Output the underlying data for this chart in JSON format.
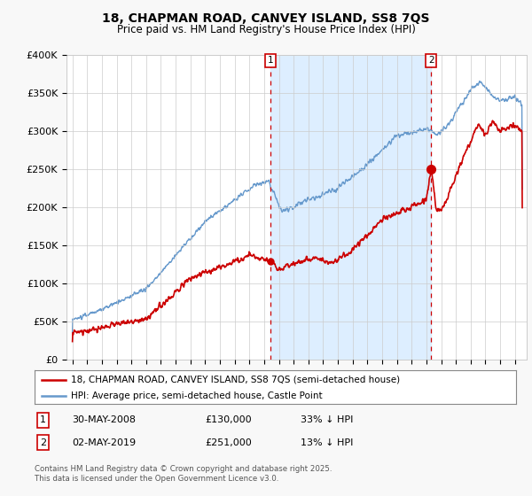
{
  "title": "18, CHAPMAN ROAD, CANVEY ISLAND, SS8 7QS",
  "subtitle": "Price paid vs. HM Land Registry's House Price Index (HPI)",
  "legend_line1": "18, CHAPMAN ROAD, CANVEY ISLAND, SS8 7QS (semi-detached house)",
  "legend_line2": "HPI: Average price, semi-detached house, Castle Point",
  "footer": "Contains HM Land Registry data © Crown copyright and database right 2025.\nThis data is licensed under the Open Government Licence v3.0.",
  "ylim": [
    0,
    400000
  ],
  "yticks": [
    0,
    50000,
    100000,
    150000,
    200000,
    250000,
    300000,
    350000,
    400000
  ],
  "ytick_labels": [
    "£0",
    "£50K",
    "£100K",
    "£150K",
    "£200K",
    "£250K",
    "£300K",
    "£350K",
    "£400K"
  ],
  "red_color": "#cc0000",
  "blue_color": "#6699cc",
  "shade_color": "#ddeeff",
  "marker1_date": 2008.41,
  "marker2_date": 2019.33,
  "background_color": "#f8f8f8",
  "plot_background": "#ffffff",
  "grid_color": "#cccccc",
  "xlim_left": 1994.6,
  "xlim_right": 2025.8
}
